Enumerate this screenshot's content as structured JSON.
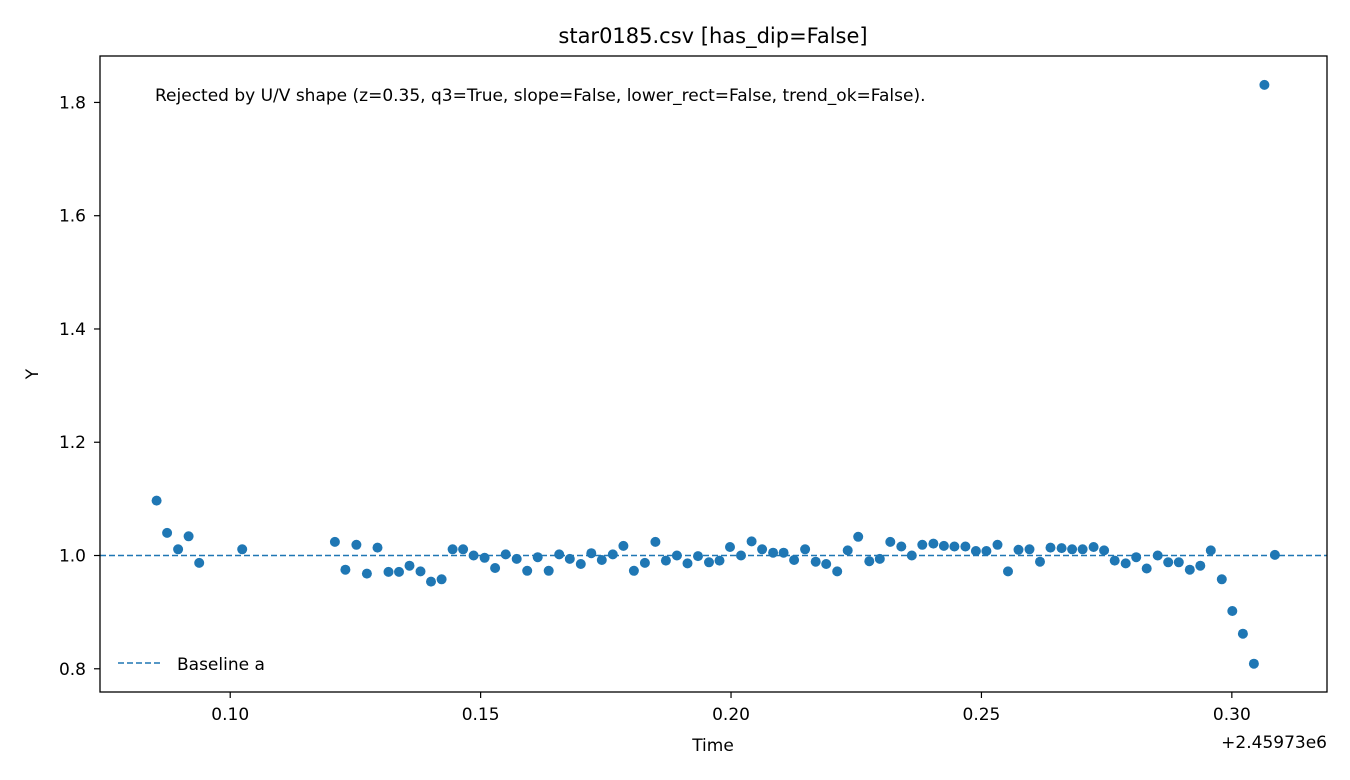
{
  "colors": {
    "marker": "#1f77b4",
    "baseline": "#1f77b4",
    "axis": "#000000",
    "background": "#ffffff"
  },
  "chart_data": {
    "type": "scatter",
    "title": "star0185.csv [has_dip=False]",
    "xlabel": "Time",
    "ylabel": "Y",
    "x_offset_label": "+2.45973e6",
    "annotation": "Rejected by U/V shape (z=0.35, q3=True, slope=False, lower_rect=False, trend_ok=False).",
    "xlim": [
      0.074,
      0.319
    ],
    "ylim": [
      0.759,
      1.882
    ],
    "x_ticks": [
      {
        "value": 0.1,
        "label": "0.10"
      },
      {
        "value": 0.15,
        "label": "0.15"
      },
      {
        "value": 0.2,
        "label": "0.20"
      },
      {
        "value": 0.25,
        "label": "0.25"
      },
      {
        "value": 0.3,
        "label": "0.30"
      }
    ],
    "y_ticks": [
      {
        "value": 0.8,
        "label": "0.8"
      },
      {
        "value": 1.0,
        "label": "1.0"
      },
      {
        "value": 1.2,
        "label": "1.2"
      },
      {
        "value": 1.4,
        "label": "1.4"
      },
      {
        "value": 1.6,
        "label": "1.6"
      },
      {
        "value": 1.8,
        "label": "1.8"
      }
    ],
    "grid": false,
    "legend": {
      "placement": "lower-left",
      "entries": [
        {
          "label": "Baseline a",
          "style": "dashed-line"
        }
      ]
    },
    "baseline": {
      "name": "Baseline a",
      "y": 1.0
    },
    "points": [
      [
        0.0853,
        1.097
      ],
      [
        0.0874,
        1.04
      ],
      [
        0.0896,
        1.011
      ],
      [
        0.0917,
        1.034
      ],
      [
        0.0938,
        0.987
      ],
      [
        0.1024,
        1.011
      ],
      [
        0.1209,
        1.024
      ],
      [
        0.123,
        0.975
      ],
      [
        0.1252,
        1.019
      ],
      [
        0.1273,
        0.968
      ],
      [
        0.1294,
        1.014
      ],
      [
        0.1316,
        0.971
      ],
      [
        0.1337,
        0.971
      ],
      [
        0.1358,
        0.982
      ],
      [
        0.138,
        0.972
      ],
      [
        0.1401,
        0.954
      ],
      [
        0.1422,
        0.958
      ],
      [
        0.1444,
        1.011
      ],
      [
        0.1465,
        1.011
      ],
      [
        0.1486,
        1.0
      ],
      [
        0.1508,
        0.996
      ],
      [
        0.1529,
        0.978
      ],
      [
        0.155,
        1.002
      ],
      [
        0.1572,
        0.994
      ],
      [
        0.1593,
        0.973
      ],
      [
        0.1614,
        0.997
      ],
      [
        0.1636,
        0.973
      ],
      [
        0.1657,
        1.002
      ],
      [
        0.1678,
        0.994
      ],
      [
        0.17,
        0.985
      ],
      [
        0.1721,
        1.004
      ],
      [
        0.1742,
        0.992
      ],
      [
        0.1764,
        1.002
      ],
      [
        0.1785,
        1.017
      ],
      [
        0.1806,
        0.973
      ],
      [
        0.1828,
        0.987
      ],
      [
        0.1849,
        1.024
      ],
      [
        0.187,
        0.991
      ],
      [
        0.1892,
        1.0
      ],
      [
        0.1913,
        0.986
      ],
      [
        0.1934,
        0.999
      ],
      [
        0.1956,
        0.988
      ],
      [
        0.1977,
        0.991
      ],
      [
        0.1998,
        1.015
      ],
      [
        0.202,
        1.0
      ],
      [
        0.2041,
        1.025
      ],
      [
        0.2062,
        1.011
      ],
      [
        0.2084,
        1.005
      ],
      [
        0.2105,
        1.005
      ],
      [
        0.2126,
        0.992
      ],
      [
        0.2148,
        1.011
      ],
      [
        0.2169,
        0.989
      ],
      [
        0.219,
        0.985
      ],
      [
        0.2212,
        0.972
      ],
      [
        0.2233,
        1.009
      ],
      [
        0.2254,
        1.033
      ],
      [
        0.2276,
        0.99
      ],
      [
        0.2297,
        0.994
      ],
      [
        0.2318,
        1.024
      ],
      [
        0.234,
        1.016
      ],
      [
        0.2361,
        1.0
      ],
      [
        0.2382,
        1.019
      ],
      [
        0.2404,
        1.021
      ],
      [
        0.2425,
        1.017
      ],
      [
        0.2446,
        1.016
      ],
      [
        0.2468,
        1.016
      ],
      [
        0.2489,
        1.008
      ],
      [
        0.251,
        1.008
      ],
      [
        0.2532,
        1.019
      ],
      [
        0.2553,
        0.972
      ],
      [
        0.2574,
        1.01
      ],
      [
        0.2596,
        1.011
      ],
      [
        0.2617,
        0.989
      ],
      [
        0.2638,
        1.014
      ],
      [
        0.266,
        1.013
      ],
      [
        0.2681,
        1.011
      ],
      [
        0.2702,
        1.011
      ],
      [
        0.2724,
        1.015
      ],
      [
        0.2745,
        1.009
      ],
      [
        0.2766,
        0.991
      ],
      [
        0.2788,
        0.986
      ],
      [
        0.2809,
        0.997
      ],
      [
        0.283,
        0.977
      ],
      [
        0.2852,
        1.0
      ],
      [
        0.2873,
        0.988
      ],
      [
        0.2894,
        0.988
      ],
      [
        0.2916,
        0.975
      ],
      [
        0.2937,
        0.982
      ],
      [
        0.2958,
        1.009
      ],
      [
        0.298,
        0.958
      ],
      [
        0.3001,
        0.902
      ],
      [
        0.3022,
        0.862
      ],
      [
        0.3044,
        0.809
      ],
      [
        0.3065,
        1.831
      ],
      [
        0.3086,
        1.001
      ]
    ]
  }
}
